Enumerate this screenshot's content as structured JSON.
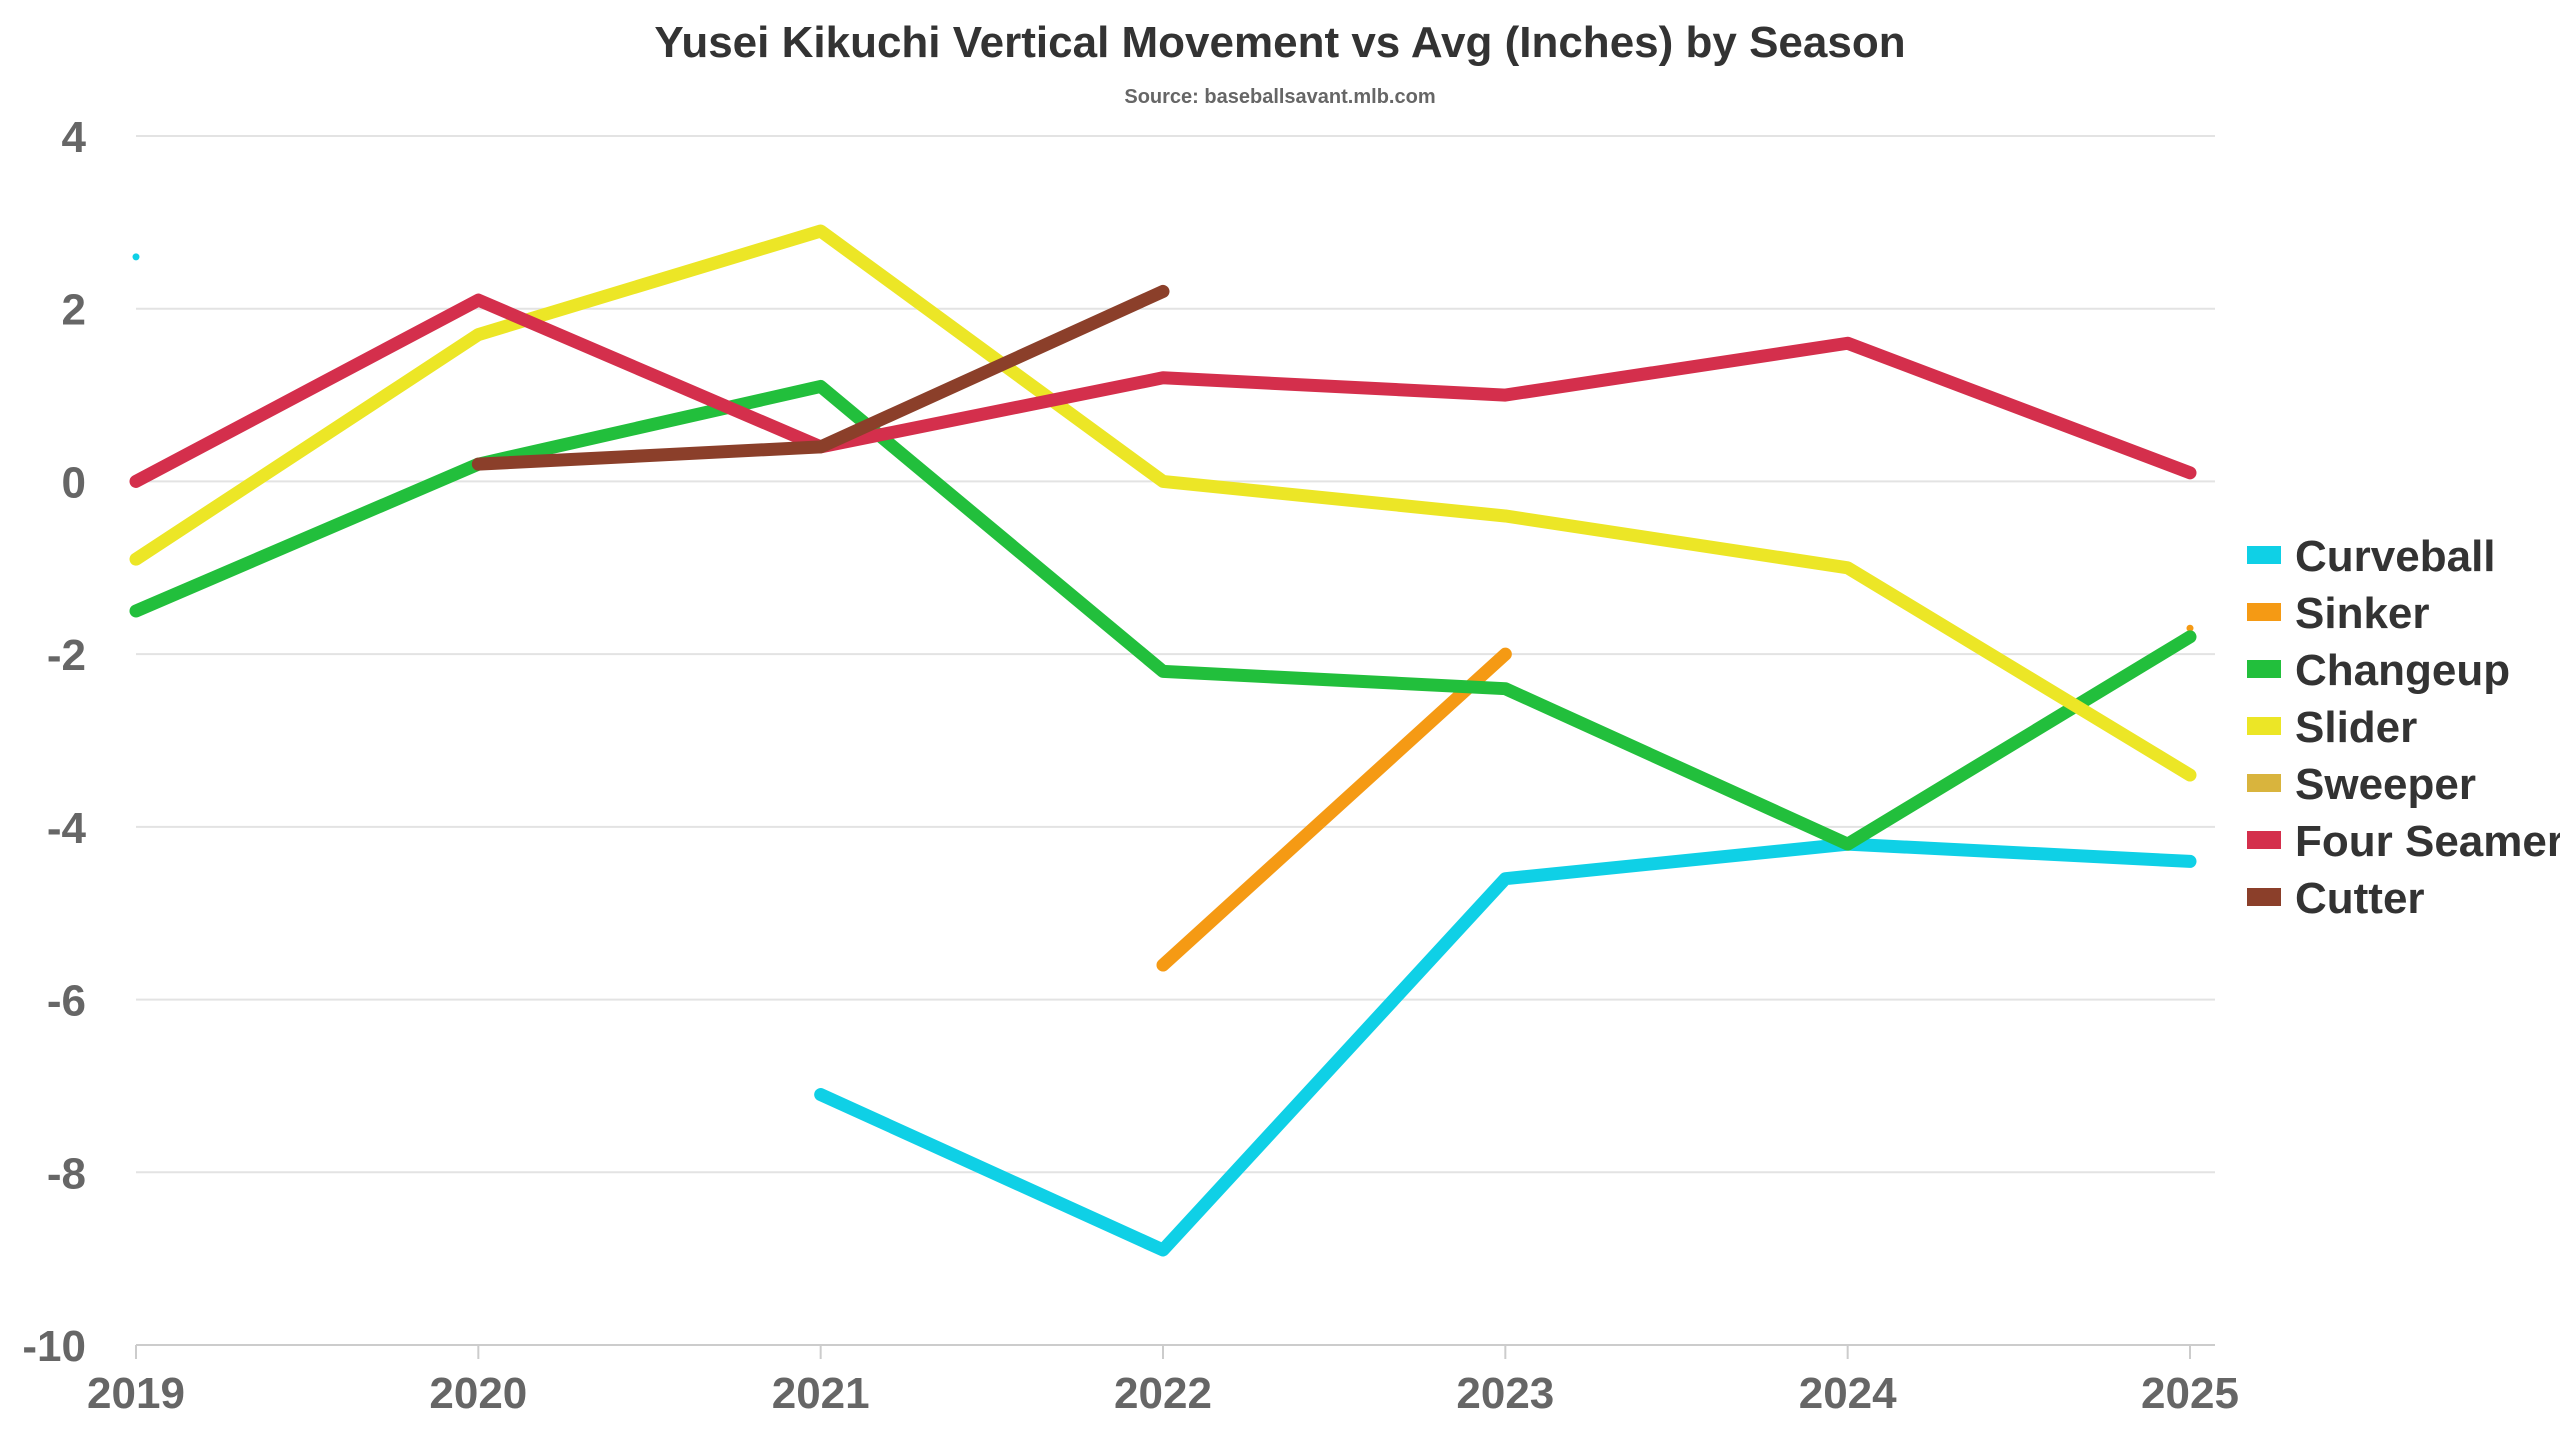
{
  "chart_data": {
    "type": "line",
    "title": "Yusei Kikuchi Vertical Movement vs Avg (Inches) by Season",
    "subtitle": "Source: baseballsavant.mlb.com",
    "xlabel": "",
    "ylabel": "",
    "categories": [
      "2019",
      "2020",
      "2021",
      "2022",
      "2023",
      "2024",
      "2025"
    ],
    "x_tick_labels": [
      "2019",
      "2020",
      "2021",
      "2022",
      "2023",
      "2024",
      "2025"
    ],
    "ylim": [
      -10,
      4
    ],
    "y_ticks": [
      4,
      2,
      0,
      -2,
      -4,
      -6,
      -8,
      -10
    ],
    "y_tick_labels": [
      "4",
      "2",
      "0",
      "-2",
      "-4",
      "-6",
      "-8",
      "-10"
    ],
    "grid": "horizontal",
    "legend_position": "right",
    "series": [
      {
        "name": "Curveball",
        "color": "#0fd0e6",
        "values": [
          2.6,
          null,
          -7.1,
          -8.9,
          -4.6,
          -4.2,
          -4.4
        ]
      },
      {
        "name": "Sinker",
        "color": "#f59a14",
        "values": [
          null,
          null,
          null,
          -5.6,
          -2.0,
          null,
          -1.7
        ]
      },
      {
        "name": "Changeup",
        "color": "#22bf3c",
        "values": [
          -1.5,
          0.2,
          1.1,
          -2.2,
          -2.4,
          -4.2,
          -1.8
        ]
      },
      {
        "name": "Slider",
        "color": "#ece626",
        "values": [
          -0.9,
          1.7,
          2.9,
          0.0,
          -0.4,
          -1.0,
          -3.4
        ]
      },
      {
        "name": "Sweeper",
        "color": "#d9b43d",
        "values": [
          null,
          null,
          null,
          null,
          null,
          null,
          null
        ]
      },
      {
        "name": "Four Seamer",
        "color": "#d42f4c",
        "values": [
          0.0,
          2.1,
          0.4,
          1.2,
          1.0,
          1.6,
          0.1
        ]
      },
      {
        "name": "Cutter",
        "color": "#8b3f2a",
        "values": [
          null,
          0.2,
          0.4,
          2.2,
          null,
          null,
          null
        ]
      }
    ]
  }
}
